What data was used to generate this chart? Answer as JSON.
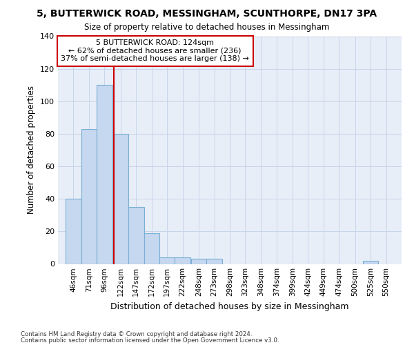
{
  "title1": "5, BUTTERWICK ROAD, MESSINGHAM, SCUNTHORPE, DN17 3PA",
  "title2": "Size of property relative to detached houses in Messingham",
  "xlabel": "Distribution of detached houses by size in Messingham",
  "ylabel": "Number of detached properties",
  "bar_color": "#c5d8ef",
  "bar_edge_color": "#7aafd4",
  "bin_labels": [
    "46sqm",
    "71sqm",
    "96sqm",
    "122sqm",
    "147sqm",
    "172sqm",
    "197sqm",
    "222sqm",
    "248sqm",
    "273sqm",
    "298sqm",
    "323sqm",
    "348sqm",
    "374sqm",
    "399sqm",
    "424sqm",
    "449sqm",
    "474sqm",
    "500sqm",
    "525sqm",
    "550sqm"
  ],
  "bin_edges": [
    46,
    71,
    96,
    122,
    147,
    172,
    197,
    222,
    248,
    273,
    298,
    323,
    348,
    374,
    399,
    424,
    449,
    474,
    500,
    525,
    550
  ],
  "bar_heights": [
    40,
    83,
    110,
    80,
    35,
    19,
    4,
    4,
    3,
    3,
    0,
    0,
    0,
    0,
    0,
    0,
    0,
    0,
    0,
    2,
    0
  ],
  "property_size": 124,
  "red_line_color": "#cc0000",
  "annotation_line1": "5 BUTTERWICK ROAD: 124sqm",
  "annotation_line2": "← 62% of detached houses are smaller (236)",
  "annotation_line3": "37% of semi-detached houses are larger (138) →",
  "annotation_box_color": "#ffffff",
  "annotation_border_color": "#cc0000",
  "ylim": [
    0,
    140
  ],
  "yticks": [
    0,
    20,
    40,
    60,
    80,
    100,
    120,
    140
  ],
  "grid_color": "#c8d4e8",
  "background_color": "#e8eef8",
  "footnote1": "Contains HM Land Registry data © Crown copyright and database right 2024.",
  "footnote2": "Contains public sector information licensed under the Open Government Licence v3.0."
}
